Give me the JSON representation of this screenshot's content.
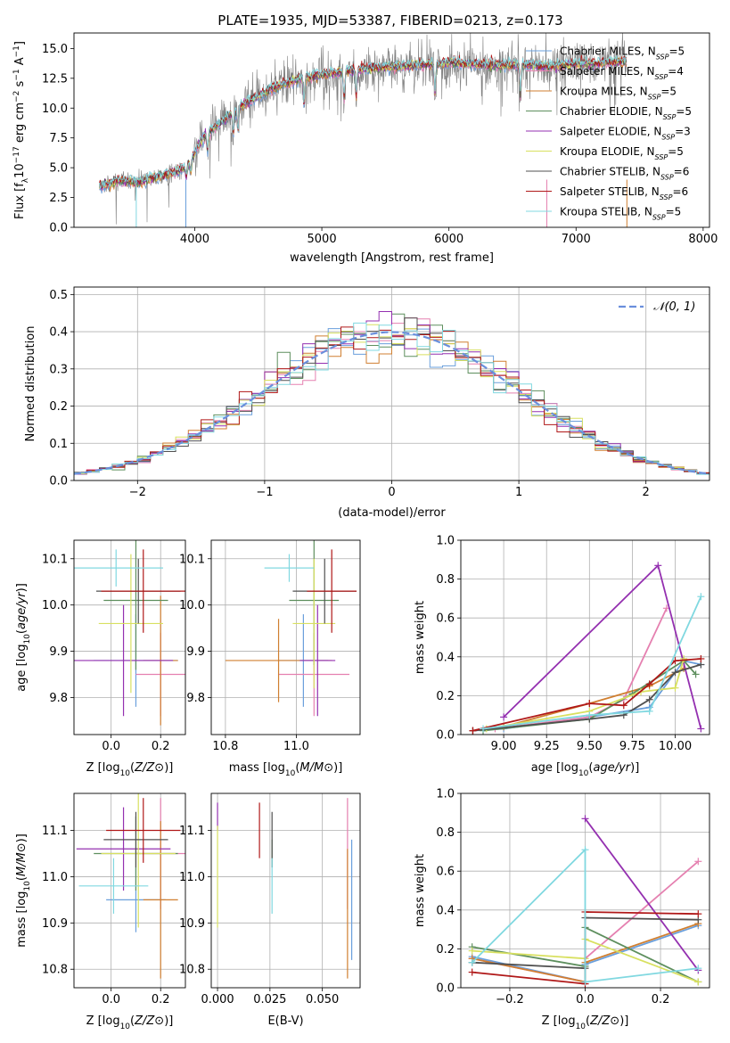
{
  "title": "PLATE=1935, MJD=53387, FIBERID=0213, z=0.173",
  "colors": {
    "Chabrier MILES": "#6a9fdc",
    "Salpeter MILES": "#e580b0",
    "Kroupa MILES": "#d07f30",
    "Chabrier ELODIE": "#5e8f5e",
    "Salpeter ELODIE": "#9430b0",
    "Kroupa ELODIE": "#d8e060",
    "Chabrier STELIB": "#505050",
    "Salpeter STELIB": "#b01818",
    "Kroupa STELIB": "#80d8e0",
    "data": "#808080",
    "normal": "#6a8fdc",
    "grid": "#b0b0b0"
  },
  "chart_data": [
    {
      "type": "line",
      "xlabel": "wavelength [Angstrom, rest frame]",
      "ylabel": "Flux [f",
      "ylabel_parts": [
        "Flux [f",
        "λ",
        "10",
        "−17",
        " erg cm",
        "−2",
        " s",
        "−1",
        " A",
        "−1",
        "]"
      ],
      "xlim": [
        3050,
        8050
      ],
      "ylim": [
        0,
        16.3
      ],
      "xticks": [
        4000,
        5000,
        6000,
        7000,
        8000
      ],
      "yticks": [
        0.0,
        2.5,
        5.0,
        7.5,
        10.0,
        12.5,
        15.0
      ],
      "continuum": {
        "x": [
          3250,
          3400,
          3550,
          3700,
          3850,
          3950,
          4050,
          4200,
          4400,
          4600,
          4800,
          5000,
          5200,
          5400,
          5600,
          5800,
          6000,
          6200,
          6400,
          6600,
          6800,
          7000,
          7200,
          7400
        ],
        "y": [
          3.4,
          3.9,
          3.8,
          4.2,
          4.6,
          5.2,
          7.3,
          8.8,
          10.4,
          11.6,
          12.4,
          12.8,
          13.1,
          13.4,
          13.5,
          13.6,
          13.8,
          13.7,
          13.6,
          13.6,
          13.5,
          13.7,
          13.8,
          13.9
        ]
      },
      "series": [
        {
          "name": "Chabrier MILES",
          "nssp": "5"
        },
        {
          "name": "Salpeter MILES",
          "nssp": "4"
        },
        {
          "name": "Kroupa MILES",
          "nssp": "5"
        },
        {
          "name": "Chabrier ELODIE",
          "nssp": "5"
        },
        {
          "name": "Salpeter ELODIE",
          "nssp": "3"
        },
        {
          "name": "Kroupa ELODIE",
          "nssp": "5"
        },
        {
          "name": "Chabrier STELIB",
          "nssp": "6"
        },
        {
          "name": "Salpeter STELIB",
          "nssp": "6"
        },
        {
          "name": "Kroupa STELIB",
          "nssp": "5"
        }
      ],
      "legend": "upper right"
    },
    {
      "type": "line",
      "xlabel": "(data-model)/error",
      "ylabel": "Normed distribution",
      "xlim": [
        -2.5,
        2.5
      ],
      "ylim": [
        0,
        0.52
      ],
      "xticks": [
        -2,
        -1,
        0,
        1,
        2
      ],
      "yticks": [
        0.0,
        0.1,
        0.2,
        0.3,
        0.4,
        0.5
      ],
      "legend_label": "𝒩(0, 1)",
      "legend": "upper right",
      "grid": true
    },
    {
      "type": "scatter",
      "xlabel": "Z [log10(Z/Z⊙)]",
      "ylabel": "age  [log10(age/yr)]",
      "xlim": [
        -0.15,
        0.3
      ],
      "ylim": [
        9.72,
        10.14
      ],
      "xticks": [
        0.0,
        0.2
      ],
      "yticks": [
        9.8,
        9.9,
        10.0,
        10.1
      ],
      "grid": true,
      "points": [
        {
          "s": 0,
          "x": 0.1,
          "y": 9.88,
          "xe": 0.17,
          "ye": 0.1
        },
        {
          "s": 1,
          "x": 0.2,
          "y": 9.85,
          "xe": 0.1,
          "ye": 0.09
        },
        {
          "s": 2,
          "x": 0.2,
          "y": 9.88,
          "xe": 0.07,
          "ye": 0.14
        },
        {
          "s": 3,
          "x": 0.1,
          "y": 10.01,
          "xe": 0.13,
          "ye": 0.15
        },
        {
          "s": 4,
          "x": 0.05,
          "y": 9.88,
          "xe": 0.2,
          "ye": 0.12
        },
        {
          "s": 5,
          "x": 0.08,
          "y": 9.96,
          "xe": 0.13,
          "ye": 0.15
        },
        {
          "s": 6,
          "x": 0.11,
          "y": 10.03,
          "xe": 0.17,
          "ye": 0.07
        },
        {
          "s": 7,
          "x": 0.13,
          "y": 10.03,
          "xe": 0.17,
          "ye": 0.09
        },
        {
          "s": 8,
          "x": 0.02,
          "y": 10.08,
          "xe": 0.19,
          "ye": 0.04
        }
      ]
    },
    {
      "type": "scatter",
      "xlabel": "mass [log10(M/M⊙)]",
      "xlim": [
        10.76,
        11.18
      ],
      "ylim": [
        9.72,
        10.14
      ],
      "xticks": [
        10.8,
        11.0
      ],
      "yticks": [
        9.8,
        9.9,
        10.0,
        10.1
      ],
      "grid": true,
      "points": [
        {
          "s": 0,
          "x": 11.02,
          "y": 9.88,
          "xe": 0.07,
          "ye": 0.1
        },
        {
          "s": 1,
          "x": 11.05,
          "y": 9.85,
          "xe": 0.1,
          "ye": 0.09
        },
        {
          "s": 2,
          "x": 10.95,
          "y": 9.88,
          "xe": 0.15,
          "ye": 0.09
        },
        {
          "s": 3,
          "x": 11.05,
          "y": 10.01,
          "xe": 0.07,
          "ye": 0.14
        },
        {
          "s": 4,
          "x": 11.06,
          "y": 9.88,
          "xe": 0.05,
          "ye": 0.12
        },
        {
          "s": 5,
          "x": 11.05,
          "y": 9.96,
          "xe": 0.06,
          "ye": 0.14
        },
        {
          "s": 6,
          "x": 11.08,
          "y": 10.03,
          "xe": 0.09,
          "ye": 0.07
        },
        {
          "s": 7,
          "x": 11.1,
          "y": 10.03,
          "xe": 0.07,
          "ye": 0.09
        },
        {
          "s": 8,
          "x": 10.98,
          "y": 10.08,
          "xe": 0.07,
          "ye": 0.03
        }
      ]
    },
    {
      "type": "line",
      "xlabel": "age  [log10(age/yr)]",
      "ylabel": "mass weight",
      "xlim": [
        8.75,
        10.2
      ],
      "ylim": [
        0,
        1.0
      ],
      "xticks": [
        9.0,
        9.25,
        9.5,
        9.75,
        10.0
      ],
      "yticks": [
        0.0,
        0.2,
        0.4,
        0.6,
        0.8,
        1.0
      ],
      "grid": true,
      "series": [
        {
          "s": 0,
          "x": [
            8.82,
            9.0,
            9.5,
            9.85,
            10.05,
            10.15
          ],
          "y": [
            0.02,
            0.03,
            0.09,
            0.14,
            0.38,
            0.36
          ]
        },
        {
          "s": 1,
          "x": [
            8.95,
            9.5,
            9.7,
            9.95
          ],
          "y": [
            0.03,
            0.09,
            0.18,
            0.65
          ]
        },
        {
          "s": 2,
          "x": [
            8.82,
            9.0,
            9.5,
            9.85,
            10.05
          ],
          "y": [
            0.02,
            0.04,
            0.16,
            0.25,
            0.34
          ]
        },
        {
          "s": 3,
          "x": [
            8.88,
            9.5,
            9.75,
            10.05,
            10.12
          ],
          "y": [
            0.02,
            0.08,
            0.21,
            0.38,
            0.31
          ]
        },
        {
          "s": 4,
          "x": [
            9.0,
            9.9,
            10.15
          ],
          "y": [
            0.09,
            0.87,
            0.03
          ]
        },
        {
          "s": 5,
          "x": [
            8.9,
            9.5,
            9.8,
            10.0,
            10.05
          ],
          "y": [
            0.03,
            0.12,
            0.22,
            0.24,
            0.39
          ]
        },
        {
          "s": 6,
          "x": [
            8.82,
            9.5,
            9.7,
            9.85,
            10.0,
            10.15
          ],
          "y": [
            0.02,
            0.08,
            0.1,
            0.18,
            0.32,
            0.36
          ]
        },
        {
          "s": 7,
          "x": [
            8.82,
            9.5,
            9.7,
            9.85,
            10.0,
            10.15
          ],
          "y": [
            0.02,
            0.16,
            0.15,
            0.26,
            0.38,
            0.39
          ]
        },
        {
          "s": 8,
          "x": [
            8.88,
            9.5,
            9.85,
            10.15
          ],
          "y": [
            0.03,
            0.1,
            0.12,
            0.71
          ]
        }
      ]
    },
    {
      "type": "scatter",
      "xlabel": "Z [log10(Z/Z⊙)]",
      "ylabel": "mass [log10(M/M⊙)]",
      "xlim": [
        -0.15,
        0.3
      ],
      "ylim": [
        10.76,
        11.18
      ],
      "xticks": [
        0.0,
        0.2
      ],
      "yticks": [
        10.8,
        10.9,
        11.0,
        11.1
      ],
      "grid": true,
      "points": [
        {
          "s": 0,
          "x": 0.1,
          "y": 10.95,
          "xe": 0.12,
          "ye": 0.07
        },
        {
          "s": 1,
          "x": 0.2,
          "y": 11.05,
          "xe": 0.1,
          "ye": 0.12
        },
        {
          "s": 2,
          "x": 0.2,
          "y": 10.95,
          "xe": 0.07,
          "ye": 0.17
        },
        {
          "s": 3,
          "x": 0.1,
          "y": 11.05,
          "xe": 0.17,
          "ye": 0.08
        },
        {
          "s": 4,
          "x": 0.05,
          "y": 11.06,
          "xe": 0.19,
          "ye": 0.09
        },
        {
          "s": 5,
          "x": 0.11,
          "y": 11.05,
          "xe": 0.15,
          "ye": 0.16
        },
        {
          "s": 6,
          "x": 0.1,
          "y": 11.08,
          "xe": 0.13,
          "ye": 0.06
        },
        {
          "s": 7,
          "x": 0.13,
          "y": 11.1,
          "xe": 0.15,
          "ye": 0.07
        },
        {
          "s": 8,
          "x": 0.01,
          "y": 10.98,
          "xe": 0.14,
          "ye": 0.06
        }
      ]
    },
    {
      "type": "scatter",
      "xlabel": "E(B-V)",
      "xlim": [
        -0.003,
        0.068
      ],
      "ylim": [
        10.76,
        11.18
      ],
      "xticks": [
        0.0,
        0.025,
        0.05
      ],
      "yticks": [
        10.8,
        10.9,
        11.0,
        11.1
      ],
      "grid": true,
      "points": [
        {
          "s": 0,
          "x": 0.064,
          "y": 10.95,
          "ye": 0.13
        },
        {
          "s": 1,
          "x": 0.062,
          "y": 11.05,
          "ye": 0.12
        },
        {
          "s": 2,
          "x": 0.062,
          "y": 10.92,
          "ye": 0.14
        },
        {
          "s": 3,
          "x": 0.026,
          "y": 11.05,
          "ye": 0.03
        },
        {
          "s": 4,
          "x": 0.0,
          "y": 11.13,
          "ye": 0.03
        },
        {
          "s": 5,
          "x": 0.0,
          "y": 11.0,
          "ye": 0.11
        },
        {
          "s": 6,
          "x": 0.026,
          "y": 11.08,
          "ye": 0.06
        },
        {
          "s": 7,
          "x": 0.02,
          "y": 11.1,
          "ye": 0.06
        },
        {
          "s": 8,
          "x": 0.026,
          "y": 10.98,
          "ye": 0.06
        }
      ]
    },
    {
      "type": "line",
      "xlabel": "Z [log10(Z/Z⊙)]",
      "ylabel": "mass weight",
      "xlim": [
        -0.33,
        0.33
      ],
      "ylim": [
        0,
        1.0
      ],
      "xticks": [
        -0.2,
        0.0,
        0.2
      ],
      "yticks": [
        0.0,
        0.2,
        0.4,
        0.6,
        0.8,
        1.0
      ],
      "grid": true,
      "series": [
        {
          "s": 0,
          "x": [
            -0.3,
            0.0,
            0.0,
            0.3
          ],
          "y": [
            0.16,
            0.03,
            0.12,
            0.32
          ]
        },
        {
          "s": 1,
          "x": [
            -0.3,
            0.0,
            0.0,
            0.3
          ],
          "y": [
            0.15,
            0.03,
            0.15,
            0.65
          ]
        },
        {
          "s": 2,
          "x": [
            -0.3,
            0.0,
            0.0,
            0.3
          ],
          "y": [
            0.15,
            0.03,
            0.13,
            0.33
          ]
        },
        {
          "s": 3,
          "x": [
            -0.3,
            0.0,
            0.0,
            0.3
          ],
          "y": [
            0.21,
            0.11,
            0.31,
            0.03
          ]
        },
        {
          "s": 4,
          "x": [
            0.0,
            0.3
          ],
          "y": [
            0.87,
            0.09
          ]
        },
        {
          "s": 5,
          "x": [
            -0.3,
            0.0,
            0.0,
            0.3
          ],
          "y": [
            0.19,
            0.15,
            0.25,
            0.03
          ]
        },
        {
          "s": 6,
          "x": [
            -0.3,
            0.0,
            0.0,
            0.3
          ],
          "y": [
            0.13,
            0.1,
            0.36,
            0.35
          ]
        },
        {
          "s": 7,
          "x": [
            -0.3,
            0.0,
            0.0,
            0.3
          ],
          "y": [
            0.08,
            0.02,
            0.39,
            0.38
          ]
        },
        {
          "s": 8,
          "x": [
            -0.3,
            0.0,
            0.0,
            0.3
          ],
          "y": [
            0.13,
            0.71,
            0.03,
            0.1
          ]
        }
      ]
    }
  ]
}
